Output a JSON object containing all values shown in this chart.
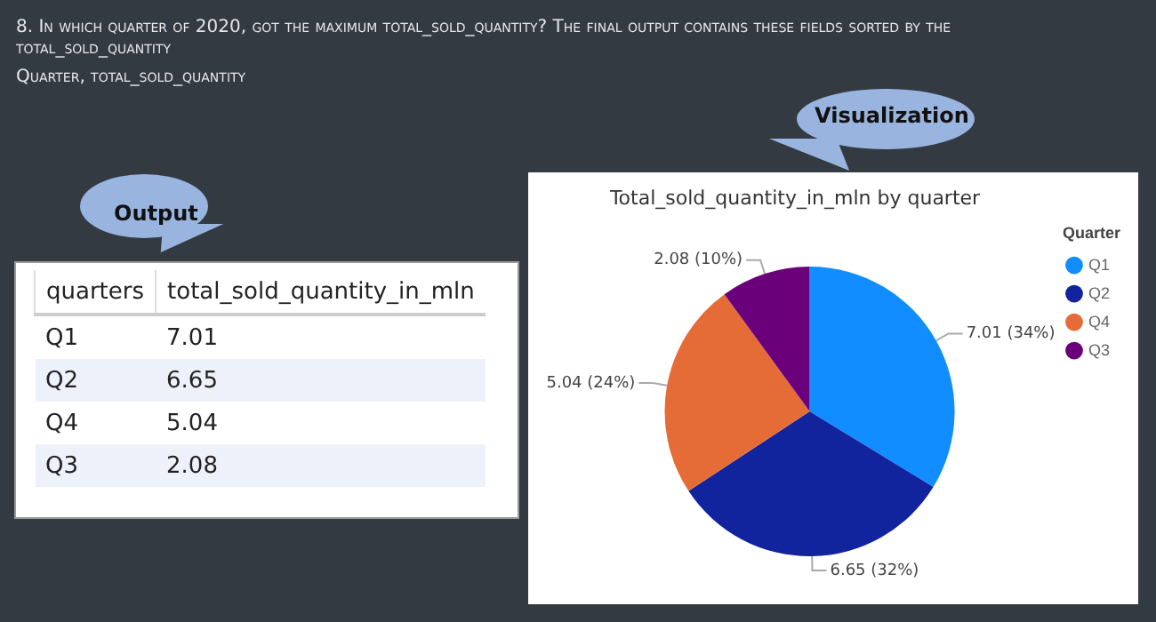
{
  "chart_data": {
    "type": "pie",
    "title": "Total_sold_quantity_in_mln by quarter",
    "legend_title": "Quarter",
    "legend": "top right",
    "data_labels": true,
    "categories": [
      "Q1",
      "Q2",
      "Q4",
      "Q3"
    ],
    "values": [
      7.01,
      6.65,
      5.04,
      2.08
    ],
    "colors": [
      "#118dff",
      "#12239e",
      "#e66c37",
      "#6b007b"
    ],
    "value_labels": [
      "7.01 (34%)",
      "6.65 (32%)",
      "5.04 (24%)",
      "2.08 (10%)"
    ],
    "annotations": [
      "8. In which quarter of 2020, got the maximum total_sold_quantity? The final output contains these fields sorted by the total_sold_quantity",
      "Quarter, total_sold_quantity",
      "Output",
      "Visualization",
      "quarters",
      "total_sold_quantity_in_mln",
      "7.01",
      "6.65",
      "5.04",
      "2.08"
    ]
  }
}
